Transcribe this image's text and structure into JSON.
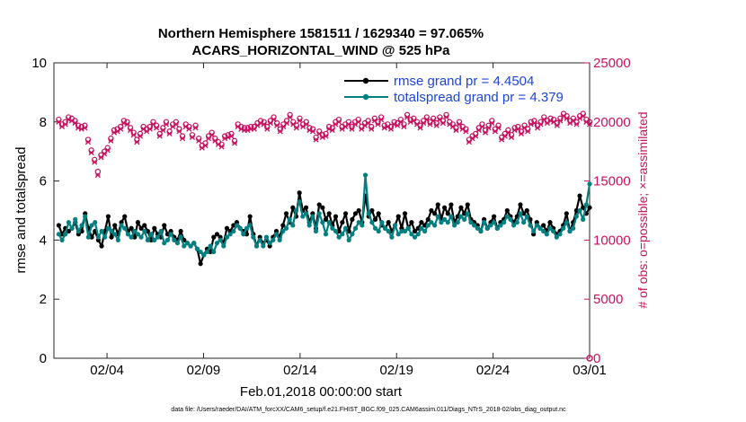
{
  "chart_data": {
    "type": "line",
    "title_line1": "Northern Hemisphere 1581511 / 1629340 = 97.065%",
    "title_line2": "ACARS_HORIZONTAL_WIND @ 525 hPa",
    "xlabel": "Feb.01,2018 00:00:00 start",
    "ylabel_left": "rmse and totalspread",
    "ylabel_right": "# of obs: o=possible; ×=assimilated",
    "footer": "data file: /Users/raeder/DAI/ATM_forcXX/CAM6_setup/f.e21.FHIST_BGC.f09_025.CAM6assim.011/Diags_NTrS_2018-02/obs_diag_output.nc",
    "x_ticks": [
      {
        "x": 3,
        "label": "02/04"
      },
      {
        "x": 8,
        "label": "02/09"
      },
      {
        "x": 13,
        "label": "02/14"
      },
      {
        "x": 18,
        "label": "02/19"
      },
      {
        "x": 23,
        "label": "02/24"
      },
      {
        "x": 28,
        "label": "03/01"
      }
    ],
    "xlim": [
      0.25,
      28
    ],
    "ylim_left": [
      0,
      10
    ],
    "yticks_left": [
      0,
      2,
      4,
      6,
      8,
      10
    ],
    "ylim_right": [
      0,
      25000
    ],
    "yticks_right": [
      0,
      5000,
      10000,
      15000,
      20000,
      25000
    ],
    "grid": false,
    "legend_position": "top-right",
    "colors": {
      "rmse": "#000000",
      "spread": "#008080",
      "obs": "#c8125f",
      "legend_text": "#1f45d6"
    },
    "series": [
      {
        "name": "rmse grand pr = 4.4504",
        "axis": "left",
        "values": [
          4.5,
          4.2,
          4.4,
          4.3,
          4.4,
          4.6,
          4.2,
          4.3,
          4.9,
          4.4,
          4.1,
          4.3,
          4.0,
          3.8,
          4.3,
          4.8,
          4.1,
          4.5,
          4.2,
          4.6,
          4.8,
          4.3,
          4.4,
          4.1,
          4.6,
          4.4,
          4.5,
          4.3,
          4.0,
          4.4,
          4.2,
          4.1,
          4.5,
          4.2,
          4.3,
          4.1,
          4.0,
          4.3,
          4.0,
          3.9,
          3.8,
          3.9,
          3.7,
          3.2,
          3.5,
          3.7,
          3.6,
          4.1,
          4.2,
          4.1,
          3.9,
          4.4,
          4.3,
          4.5,
          4.6,
          4.4,
          4.3,
          4.2,
          4.8,
          4.2,
          3.8,
          4.1,
          3.9,
          4.0,
          3.8,
          4.1,
          4.3,
          4.1,
          4.5,
          4.9,
          4.6,
          5.1,
          4.8,
          5.6,
          5.0,
          5.1,
          4.6,
          4.9,
          4.4,
          5.2,
          5.1,
          4.7,
          4.9,
          4.5,
          4.8,
          4.3,
          4.6,
          4.9,
          4.3,
          4.7,
          4.9,
          5.0,
          4.6,
          5.5,
          4.8,
          5.0,
          4.7,
          4.9,
          4.5,
          4.4,
          4.6,
          4.3,
          4.5,
          4.8,
          4.4,
          4.9,
          4.4,
          4.6,
          4.3,
          4.4,
          4.6,
          4.5,
          4.7,
          5.0,
          4.9,
          5.2,
          4.7,
          5.1,
          4.9,
          5.2,
          4.6,
          4.8,
          5.1,
          4.9,
          5.2,
          4.7,
          4.6,
          4.5,
          4.3,
          4.7,
          4.4,
          4.6,
          4.8,
          4.4,
          4.6,
          4.7,
          5.0,
          4.8,
          4.6,
          4.8,
          5.2,
          4.9,
          5.0,
          4.7,
          4.2,
          4.6,
          4.4,
          4.5,
          4.3,
          4.6,
          4.4,
          4.2,
          4.3,
          4.5,
          4.9,
          4.3,
          4.6,
          5.0,
          5.5,
          5.1,
          4.9,
          5.1
        ]
      },
      {
        "name": "totalspread grand pr = 4.379",
        "axis": "left",
        "values": [
          4.2,
          4.0,
          4.2,
          4.6,
          4.4,
          4.7,
          4.3,
          4.5,
          4.8,
          4.1,
          4.5,
          4.6,
          4.1,
          4.3,
          4.1,
          4.4,
          4.3,
          4.2,
          4.0,
          4.5,
          4.4,
          4.2,
          4.1,
          4.3,
          4.2,
          4.1,
          4.3,
          4.0,
          4.2,
          4.0,
          4.1,
          4.3,
          3.9,
          4.0,
          4.2,
          4.0,
          3.9,
          4.1,
          3.8,
          3.9,
          3.8,
          3.9,
          3.7,
          3.6,
          3.5,
          3.6,
          3.8,
          3.6,
          3.9,
          4.0,
          3.8,
          4.1,
          4.2,
          4.3,
          4.5,
          4.4,
          4.2,
          4.4,
          4.5,
          4.1,
          3.8,
          4.0,
          3.8,
          4.1,
          3.9,
          4.0,
          4.2,
          4.0,
          4.3,
          4.4,
          4.7,
          4.5,
          5.0,
          5.3,
          4.8,
          4.9,
          4.5,
          4.8,
          4.3,
          4.9,
          4.6,
          4.2,
          4.6,
          4.4,
          4.3,
          4.1,
          4.2,
          4.4,
          4.0,
          4.2,
          4.4,
          4.6,
          4.5,
          6.2,
          4.9,
          4.6,
          4.4,
          4.3,
          4.6,
          4.4,
          4.3,
          4.1,
          4.5,
          4.2,
          4.3,
          4.3,
          4.4,
          4.2,
          4.1,
          4.2,
          4.4,
          4.3,
          4.5,
          4.6,
          4.5,
          4.8,
          4.6,
          4.7,
          4.6,
          4.8,
          4.5,
          4.6,
          4.8,
          4.7,
          4.9,
          4.6,
          4.5,
          4.4,
          4.3,
          4.6,
          4.4,
          4.5,
          4.6,
          4.4,
          4.5,
          4.6,
          4.8,
          4.7,
          4.5,
          4.6,
          4.9,
          4.6,
          4.8,
          4.5,
          4.3,
          4.5,
          4.4,
          4.3,
          4.2,
          4.4,
          4.3,
          4.1,
          4.2,
          4.4,
          4.6,
          4.3,
          4.4,
          4.8,
          5.0,
          4.7,
          5.2,
          5.9
        ]
      }
    ],
    "obs_possible": {
      "name": "possible",
      "axis": "right",
      "marker": "o",
      "values": [
        20200,
        19800,
        20000,
        20400,
        20300,
        20100,
        19700,
        19600,
        19700,
        18500,
        17600,
        16800,
        15800,
        17200,
        17500,
        17800,
        18600,
        19300,
        19400,
        19600,
        20100,
        20000,
        19500,
        19100,
        18500,
        19000,
        19600,
        19400,
        19600,
        20000,
        19700,
        19000,
        19500,
        20000,
        19200,
        19800,
        20000,
        19400,
        18800,
        19800,
        19600,
        18900,
        19700,
        18600,
        18000,
        18200,
        18800,
        19100,
        18600,
        18300,
        18100,
        18800,
        18900,
        19000,
        18400,
        19800,
        19600,
        19500,
        19500,
        19600,
        19600,
        19900,
        20100,
        20000,
        19600,
        20100,
        20400,
        19900,
        19400,
        19800,
        20100,
        20600,
        20000,
        19700,
        20300,
        19800,
        20000,
        19500,
        19400,
        18700,
        19200,
        18900,
        19000,
        19600,
        19500,
        20000,
        20200,
        19600,
        19800,
        20000,
        19600,
        20000,
        20200,
        19600,
        19900,
        20100,
        19600,
        20300,
        20000,
        20400,
        19700,
        19800,
        19600,
        20000,
        19900,
        20200,
        19800,
        20600,
        20200,
        20300,
        20000,
        19700,
        20100,
        20400,
        20000,
        20300,
        19900,
        20400,
        20100,
        20600,
        20000,
        19800,
        19500,
        20000,
        19600,
        19400,
        18500,
        18800,
        19000,
        19500,
        19800,
        19300,
        19700,
        20100,
        19400,
        19700,
        18700,
        19000,
        19300,
        18900,
        19500,
        19600,
        19200,
        19700,
        19400,
        20000,
        20100,
        19700,
        20000,
        20400,
        20100,
        20300,
        20200,
        19900,
        20300,
        20700,
        20500,
        20100,
        20300,
        20000,
        20500,
        20700,
        20200,
        20000
      ]
    },
    "obs_assimilated": {
      "name": "assimilated",
      "axis": "right",
      "marker": "x",
      "values": [
        20000,
        19600,
        19800,
        20200,
        20100,
        19900,
        19500,
        19400,
        19500,
        18300,
        17400,
        16600,
        15500,
        17000,
        17300,
        17600,
        18400,
        19100,
        19200,
        19400,
        19900,
        19800,
        19300,
        18900,
        18300,
        18800,
        19400,
        19200,
        19400,
        19800,
        19500,
        18800,
        19300,
        19800,
        19000,
        19600,
        19800,
        19200,
        18600,
        19600,
        19400,
        18700,
        19500,
        18400,
        17800,
        18000,
        18600,
        18900,
        18400,
        18100,
        17900,
        18600,
        18700,
        18800,
        18200,
        19600,
        19400,
        19300,
        19300,
        19400,
        19400,
        19700,
        19900,
        19800,
        19400,
        19900,
        20200,
        19700,
        19200,
        19600,
        19900,
        20400,
        19800,
        19500,
        20100,
        19600,
        19800,
        19300,
        19200,
        18500,
        19000,
        18700,
        18800,
        19400,
        19300,
        19800,
        20000,
        19400,
        19600,
        19800,
        19400,
        19800,
        20000,
        19400,
        19700,
        19900,
        19400,
        20100,
        19800,
        20200,
        19500,
        19600,
        19400,
        19800,
        19700,
        20000,
        19600,
        20400,
        20000,
        20100,
        19800,
        19500,
        19900,
        20200,
        19800,
        20100,
        19700,
        20200,
        19900,
        20400,
        19800,
        19600,
        19300,
        19800,
        19400,
        19200,
        18300,
        18600,
        18800,
        19300,
        19600,
        19100,
        19500,
        19900,
        19200,
        19500,
        18500,
        18800,
        19100,
        18700,
        19300,
        19400,
        19000,
        19500,
        19200,
        19800,
        19900,
        19500,
        19800,
        20200,
        19900,
        20100,
        20000,
        19700,
        20100,
        20500,
        20300,
        19900,
        20100,
        19800,
        20300,
        20500,
        20000,
        19800
      ]
    }
  }
}
